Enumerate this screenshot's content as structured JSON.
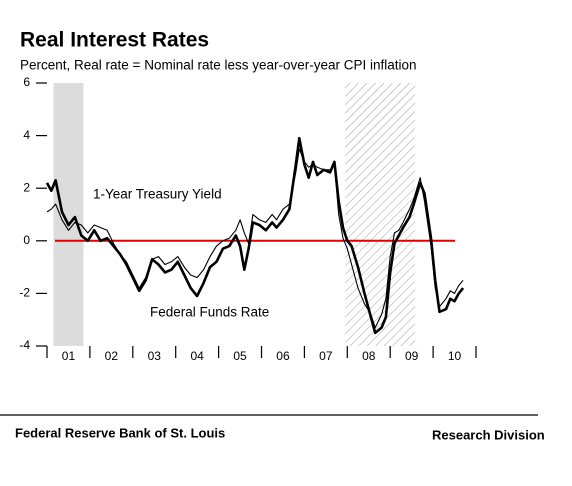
{
  "chart_data": {
    "type": "line",
    "title": "Real Interest Rates",
    "subtitle": "Percent, Real rate = Nominal rate less year-over-year CPI inflation",
    "x": [
      2001.0,
      2001.1,
      2001.2,
      2001.35,
      2001.5,
      2001.65,
      2001.8,
      2001.95,
      2002.1,
      2002.25,
      2002.4,
      2002.55,
      2002.7,
      2002.85,
      2003.0,
      2003.15,
      2003.3,
      2003.45,
      2003.6,
      2003.75,
      2003.9,
      2004.05,
      2004.2,
      2004.35,
      2004.5,
      2004.65,
      2004.8,
      2004.95,
      2005.1,
      2005.25,
      2005.4,
      2005.5,
      2005.6,
      2005.7,
      2005.8,
      2005.95,
      2006.1,
      2006.25,
      2006.35,
      2006.5,
      2006.65,
      2006.8,
      2006.88,
      2007.0,
      2007.1,
      2007.2,
      2007.3,
      2007.45,
      2007.6,
      2007.7,
      2007.8,
      2007.9,
      2008.0,
      2008.1,
      2008.25,
      2008.4,
      2008.55,
      2008.65,
      2008.8,
      2008.9,
      2009.0,
      2009.1,
      2009.2,
      2009.3,
      2009.45,
      2009.55,
      2009.7,
      2009.8,
      2009.95,
      2010.05,
      2010.15,
      2010.3,
      2010.4,
      2010.5,
      2010.6,
      2010.7
    ],
    "series": [
      {
        "name": "Federal Funds Rate",
        "color": "#000000",
        "width": 2.6,
        "values": [
          2.2,
          1.9,
          2.3,
          1.1,
          0.6,
          0.9,
          0.2,
          0.0,
          0.4,
          0.0,
          0.1,
          -0.2,
          -0.5,
          -0.9,
          -1.4,
          -1.9,
          -1.5,
          -0.7,
          -0.9,
          -1.2,
          -1.1,
          -0.8,
          -1.3,
          -1.8,
          -2.1,
          -1.6,
          -1.0,
          -0.8,
          -0.3,
          -0.2,
          0.2,
          -0.2,
          -1.1,
          -0.3,
          0.7,
          0.6,
          0.4,
          0.7,
          0.5,
          0.8,
          1.2,
          2.9,
          3.9,
          2.9,
          2.4,
          3.0,
          2.5,
          2.7,
          2.6,
          3.0,
          1.5,
          0.5,
          0.0,
          -0.2,
          -1.0,
          -2.0,
          -2.9,
          -3.5,
          -3.3,
          -2.9,
          -1.2,
          -0.1,
          0.2,
          0.5,
          0.9,
          1.4,
          2.2,
          1.8,
          0.1,
          -1.5,
          -2.7,
          -2.6,
          -2.2,
          -2.3,
          -2.0,
          -1.8
        ]
      },
      {
        "name": "1-Year Treasury Yield",
        "color": "#000000",
        "width": 1.1,
        "values": [
          1.1,
          1.2,
          1.4,
          0.8,
          0.4,
          0.7,
          0.6,
          0.3,
          0.6,
          0.5,
          0.4,
          -0.1,
          -0.5,
          -0.8,
          -1.3,
          -1.8,
          -1.4,
          -0.7,
          -0.6,
          -0.9,
          -0.8,
          -0.6,
          -1.0,
          -1.3,
          -1.4,
          -1.1,
          -0.6,
          -0.2,
          0.0,
          0.1,
          0.4,
          0.8,
          0.3,
          -0.1,
          1.0,
          0.8,
          0.7,
          1.0,
          0.8,
          1.2,
          1.4,
          2.6,
          3.5,
          3.0,
          2.8,
          2.9,
          2.8,
          2.7,
          2.7,
          2.9,
          1.0,
          0.1,
          -0.3,
          -0.9,
          -1.8,
          -2.4,
          -2.8,
          -3.3,
          -2.8,
          -2.2,
          -0.6,
          0.3,
          0.4,
          0.7,
          1.2,
          1.6,
          2.4,
          1.5,
          -0.2,
          -1.8,
          -2.5,
          -2.2,
          -1.9,
          -2.0,
          -1.7,
          -1.5
        ]
      }
    ],
    "xlim": [
      2001,
      2011
    ],
    "xticks": [
      {
        "value": 2001.5,
        "label": "01"
      },
      {
        "value": 2002.5,
        "label": "02"
      },
      {
        "value": 2003.5,
        "label": "03"
      },
      {
        "value": 2004.5,
        "label": "04"
      },
      {
        "value": 2005.5,
        "label": "05"
      },
      {
        "value": 2006.5,
        "label": "06"
      },
      {
        "value": 2007.5,
        "label": "07"
      },
      {
        "value": 2008.5,
        "label": "08"
      },
      {
        "value": 2009.5,
        "label": "09"
      },
      {
        "value": 2010.5,
        "label": "10"
      }
    ],
    "x_minor_ticks": [
      2001,
      2002,
      2003,
      2004,
      2005,
      2006,
      2007,
      2008,
      2009,
      2010,
      2011
    ],
    "ylim": [
      -4,
      6
    ],
    "yticks": [
      -4,
      -2,
      0,
      2,
      4,
      6
    ],
    "reference_line": {
      "value": 0,
      "color": "#e00000"
    },
    "shaded_periods": [
      {
        "start": 2001.15,
        "end": 2001.85,
        "style": "solid",
        "color": "#dcdcdc"
      },
      {
        "start": 2007.95,
        "end": 2009.58,
        "style": "hatch",
        "color": "#888888"
      }
    ],
    "annotations": [
      {
        "text": "1-Year Treasury Yield",
        "series": 1
      },
      {
        "text": "Federal Funds Rate",
        "series": 0
      }
    ],
    "footer_left": "Federal Reserve Bank of St. Louis",
    "footer_right": "Research Division"
  }
}
